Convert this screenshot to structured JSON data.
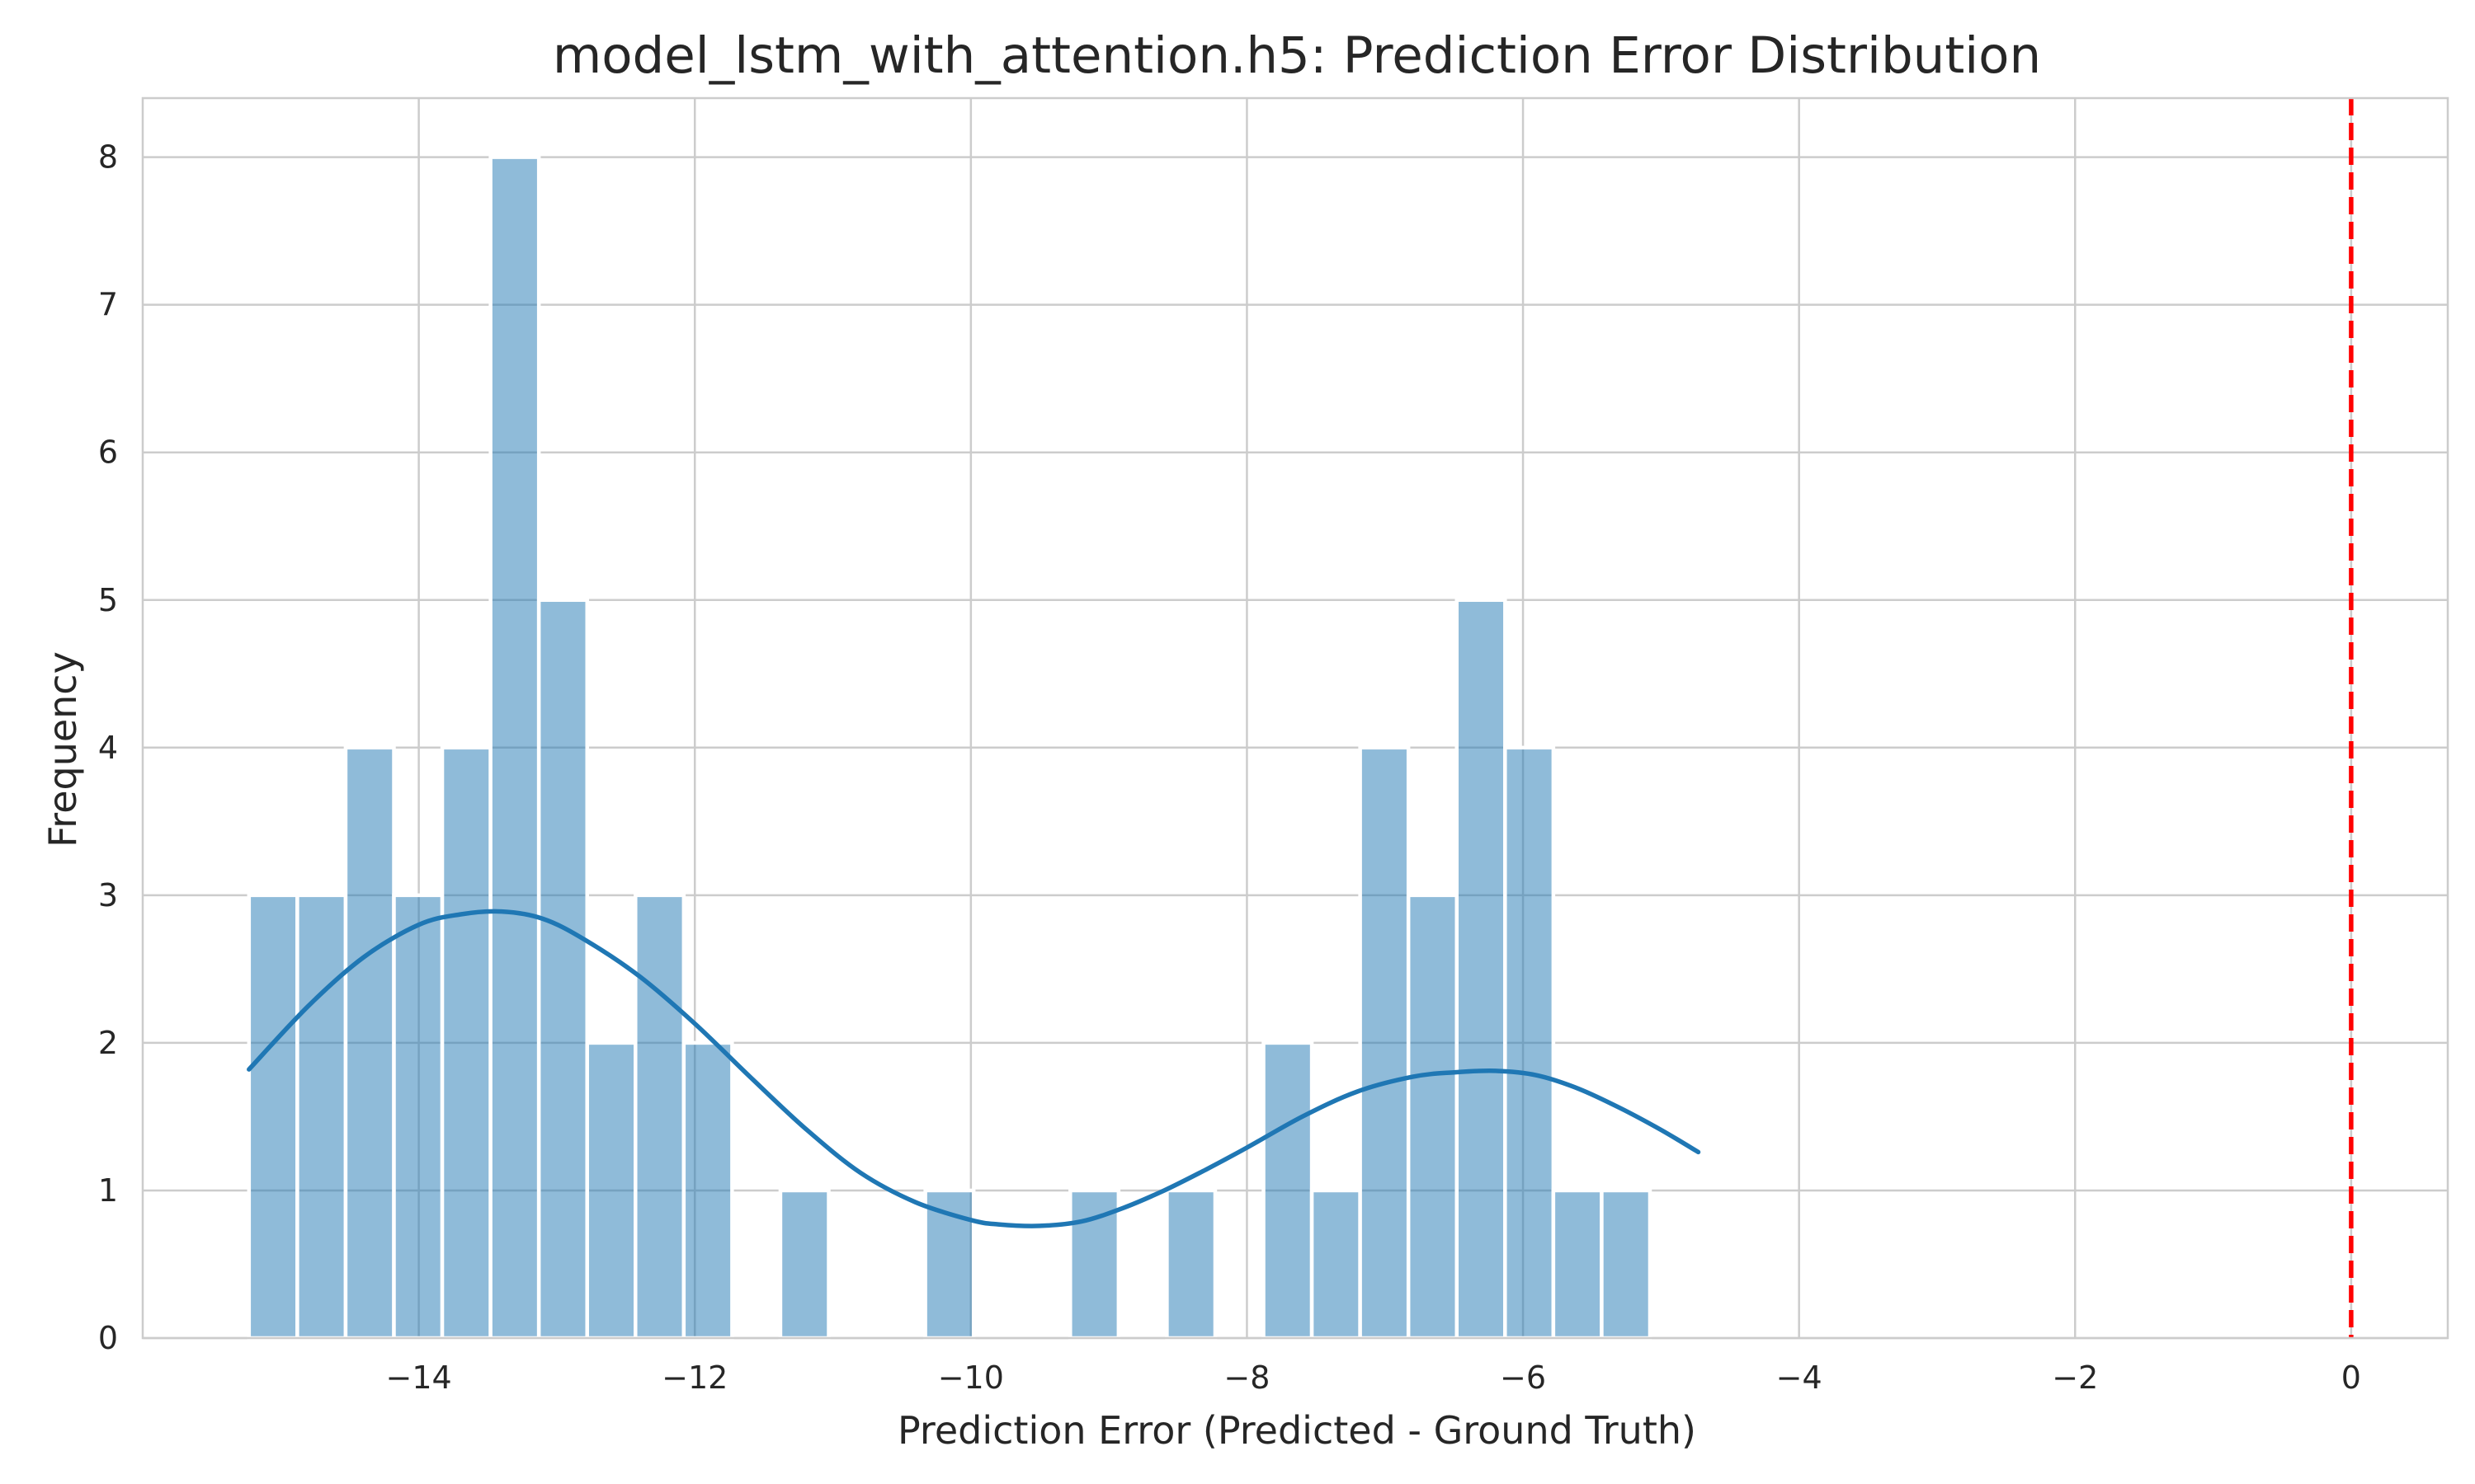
{
  "chart_data": {
    "type": "bar",
    "title": "model_lstm_with_attention.h5: Prediction Error Distribution",
    "xlabel": "Prediction Error (Predicted - Ground Truth)",
    "ylabel": "Frequency",
    "xlim": [
      -16.0,
      0.7
    ],
    "ylim": [
      0,
      8.4
    ],
    "x_ticks": [
      -14,
      -12,
      -10,
      -8,
      -6,
      -4,
      -2,
      0
    ],
    "x_tick_labels": [
      "−14",
      "−12",
      "−10",
      "−8",
      "−6",
      "−4",
      "−2",
      "0"
    ],
    "y_ticks": [
      0,
      1,
      2,
      3,
      4,
      5,
      6,
      7,
      8
    ],
    "y_tick_labels": [
      "0",
      "1",
      "2",
      "3",
      "4",
      "5",
      "6",
      "7",
      "8"
    ],
    "grid": true,
    "bins": {
      "start": -15.23,
      "width": 0.35,
      "counts": [
        3,
        3,
        4,
        3,
        4,
        8,
        5,
        2,
        3,
        2,
        0,
        1,
        0,
        0,
        1,
        0,
        0,
        1,
        0,
        1,
        0,
        2,
        1,
        4,
        3,
        5,
        4,
        1,
        1
      ]
    },
    "kde": {
      "color": "#1f77b4",
      "x": [
        -15.23,
        -14.8,
        -14.4,
        -14.0,
        -13.7,
        -13.4,
        -13.1,
        -12.8,
        -12.4,
        -12.0,
        -11.6,
        -11.2,
        -10.8,
        -10.4,
        -10.0,
        -9.8,
        -9.5,
        -9.2,
        -8.9,
        -8.6,
        -8.3,
        -8.0,
        -7.6,
        -7.2,
        -6.8,
        -6.5,
        -6.2,
        -5.9,
        -5.6,
        -5.3,
        -5.0,
        -4.73
      ],
      "y": [
        1.82,
        2.25,
        2.58,
        2.8,
        2.87,
        2.89,
        2.84,
        2.7,
        2.45,
        2.13,
        1.77,
        1.42,
        1.12,
        0.92,
        0.8,
        0.77,
        0.76,
        0.79,
        0.88,
        1.0,
        1.14,
        1.29,
        1.5,
        1.67,
        1.77,
        1.8,
        1.81,
        1.78,
        1.69,
        1.56,
        1.41,
        1.26
      ]
    },
    "reference_line": {
      "x": 0,
      "color": "#ff0000",
      "style": "dashed"
    },
    "bar_color": "#1f77b4"
  }
}
